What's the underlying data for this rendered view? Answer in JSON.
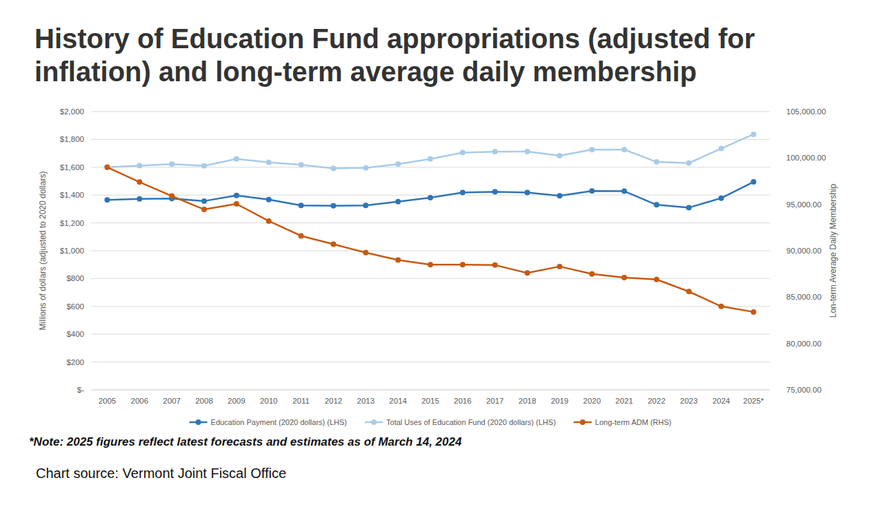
{
  "chart_data": {
    "type": "line",
    "title": "History of Education Fund appropriations (adjusted for inflation) and long-term average daily membership",
    "y_label": "Millions of dollars (adjusted to 2020 dollars)",
    "y2_label": "Lon-term Average Daily Membership",
    "annotations": [
      "*Note: 2025 figures reflect latest forecasts and estimates as of March 14, 2024",
      "Chart source: Vermont Joint Fiscal Office"
    ],
    "categories": [
      "2005",
      "2006",
      "2007",
      "2008",
      "2009",
      "2010",
      "2011",
      "2012",
      "2013",
      "2014",
      "2015",
      "2016",
      "2017",
      "2018",
      "2019",
      "2020",
      "2021",
      "2022",
      "2023",
      "2024",
      "2025*"
    ],
    "series": [
      {
        "name": "Education Payment (2020 dollars) (LHS)",
        "color": "#2e75b6",
        "axis": "y",
        "values": [
          1365,
          1372,
          1375,
          1357,
          1397,
          1368,
          1325,
          1323,
          1325,
          1353,
          1381,
          1418,
          1423,
          1418,
          1395,
          1430,
          1428,
          1330,
          1310,
          1378,
          1495
        ]
      },
      {
        "name": "Total Uses of Education Fund (2020 dollars) (LHS)",
        "color": "#a9cbe8",
        "axis": "y",
        "values": [
          1600,
          1612,
          1622,
          1610,
          1660,
          1635,
          1618,
          1592,
          1595,
          1623,
          1660,
          1705,
          1712,
          1713,
          1683,
          1727,
          1727,
          1638,
          1630,
          1735,
          1837
        ]
      },
      {
        "name": "Long-term ADM (RHS)",
        "color": "#c55a11",
        "axis": "y2",
        "values": [
          99000,
          97400,
          95900,
          94450,
          95050,
          93200,
          91600,
          90700,
          89800,
          89000,
          88500,
          88500,
          88450,
          87600,
          88300,
          87500,
          87100,
          86900,
          85600,
          84000,
          83400
        ]
      }
    ],
    "ylim": [
      0,
      2000
    ],
    "yticks": [
      {
        "value": 0,
        "label": "$-"
      },
      {
        "value": 200,
        "label": "$200"
      },
      {
        "value": 400,
        "label": "$400"
      },
      {
        "value": 600,
        "label": "$600"
      },
      {
        "value": 800,
        "label": "$800"
      },
      {
        "value": 1000,
        "label": "$1,000"
      },
      {
        "value": 1200,
        "label": "$1,200"
      },
      {
        "value": 1400,
        "label": "$1,400"
      },
      {
        "value": 1600,
        "label": "$1,600"
      },
      {
        "value": 1800,
        "label": "$1,800"
      },
      {
        "value": 2000,
        "label": "$2,000"
      }
    ],
    "y2lim": [
      75000,
      105000
    ],
    "y2ticks": [
      {
        "value": 75000,
        "label": "75,000.00"
      },
      {
        "value": 80000,
        "label": "80,000.00"
      },
      {
        "value": 85000,
        "label": "85,000.00"
      },
      {
        "value": 90000,
        "label": "90,000.00"
      },
      {
        "value": 95000,
        "label": "95,000.00"
      },
      {
        "value": 100000,
        "label": "100,000.00"
      },
      {
        "value": 105000,
        "label": "105,000.00"
      }
    ],
    "grid": true,
    "legend": "bottom",
    "marker": "circle"
  }
}
